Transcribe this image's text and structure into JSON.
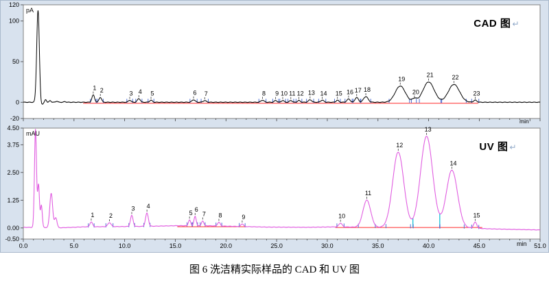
{
  "figure": {
    "caption": "图 6 洗洁精实际样品的 CAD 和 UV 图",
    "background_color": "#d8e2ee",
    "grid": false,
    "legend": "none"
  },
  "chart_data": [
    {
      "type": "line",
      "id": "cad",
      "title": "CAD 图",
      "linebreak_mark": "↵",
      "y_unit": "pA",
      "x_unit": "min",
      "xlim": [
        0,
        51
      ],
      "ylim": [
        -20,
        120
      ],
      "show_x_labels": false,
      "x_ticks": [
        {
          "v": 0,
          "label": "0.0"
        },
        {
          "v": 5,
          "label": "5.0"
        },
        {
          "v": 10,
          "label": "10.0"
        },
        {
          "v": 15,
          "label": "15.0"
        },
        {
          "v": 20,
          "label": "20.0"
        },
        {
          "v": 25,
          "label": "25.0"
        },
        {
          "v": 30,
          "label": "30.0"
        },
        {
          "v": 35,
          "label": "35.0"
        },
        {
          "v": 40,
          "label": "40.0"
        },
        {
          "v": 45,
          "label": "45.0"
        },
        {
          "v": 51,
          "label": "51.0"
        }
      ],
      "y_ticks": [
        {
          "v": 120,
          "label": "120"
        },
        {
          "v": 100,
          "label": "100"
        },
        {
          "v": 50,
          "label": "50"
        },
        {
          "v": 0,
          "label": "0"
        },
        {
          "v": -20,
          "label": "-20"
        }
      ],
      "line_color": "#000000",
      "baseline_red_color": "#ff2a2a",
      "integration_tick_color": "#4d6fd4",
      "drop_color": "#00bcd4",
      "noise_amp": 0.45,
      "baseline_anchors": [
        [
          0,
          0
        ],
        [
          1.5,
          0
        ],
        [
          1.75,
          -4
        ],
        [
          2.05,
          -1
        ],
        [
          2.5,
          0
        ],
        [
          51,
          0
        ]
      ],
      "unnumbered_peaks": [
        [
          1.45,
          113,
          0.13
        ],
        [
          2.2,
          4,
          0.09
        ],
        [
          2.65,
          2,
          0.09
        ],
        [
          3.3,
          1.3,
          0.1
        ],
        [
          4.1,
          0.8,
          0.1
        ]
      ],
      "numbered_peaks": [
        {
          "n": "1",
          "t": 6.9,
          "h": 9,
          "s": 0.13
        },
        {
          "n": "2",
          "t": 7.6,
          "h": 6,
          "s": 0.13
        },
        {
          "n": "3",
          "t": 10.5,
          "h": 2.5,
          "s": 0.13
        },
        {
          "n": "4",
          "t": 11.4,
          "h": 4.5,
          "s": 0.14
        },
        {
          "n": "5",
          "t": 12.6,
          "h": 2.5,
          "s": 0.13
        },
        {
          "n": "6",
          "t": 16.8,
          "h": 3,
          "s": 0.16
        },
        {
          "n": "7",
          "t": 17.9,
          "h": 2,
          "s": 0.16
        },
        {
          "n": "8",
          "t": 23.6,
          "h": 2.5,
          "s": 0.16
        },
        {
          "n": "9",
          "t": 24.9,
          "h": 2.2,
          "s": 0.13
        },
        {
          "n": "10",
          "t": 25.6,
          "h": 2.2,
          "s": 0.13
        },
        {
          "n": "11",
          "t": 26.4,
          "h": 2.2,
          "s": 0.13
        },
        {
          "n": "12",
          "t": 27.2,
          "h": 2.2,
          "s": 0.13
        },
        {
          "n": "13",
          "t": 28.3,
          "h": 3,
          "s": 0.16
        },
        {
          "n": "14",
          "t": 29.5,
          "h": 2.5,
          "s": 0.16
        },
        {
          "n": "15",
          "t": 31.0,
          "h": 2.5,
          "s": 0.13
        },
        {
          "n": "16",
          "t": 32.1,
          "h": 4,
          "s": 0.16
        },
        {
          "n": "17",
          "t": 32.9,
          "h": 6,
          "s": 0.16
        },
        {
          "n": "18",
          "t": 33.8,
          "h": 7,
          "s": 0.22
        },
        {
          "n": "19",
          "t": 37.2,
          "h": 20,
          "s": 0.5
        },
        {
          "n": "20",
          "t": 38.6,
          "h": 4,
          "s": 0.22
        },
        {
          "n": "21",
          "t": 40.0,
          "h": 25,
          "s": 0.55
        },
        {
          "n": "22",
          "t": 42.5,
          "h": 22,
          "s": 0.55
        },
        {
          "n": "23",
          "t": 44.6,
          "h": 2.5,
          "s": 0.16
        }
      ],
      "red_baselines": [
        {
          "t1": 5.9,
          "t2": 44.9,
          "v": -1.2
        }
      ],
      "drop_lines": []
    },
    {
      "type": "line",
      "id": "uv",
      "title": "UV 图",
      "linebreak_mark": "↵",
      "y_unit": "mAU",
      "x_unit": "min",
      "xlim": [
        0,
        51
      ],
      "ylim": [
        -0.5,
        4.5
      ],
      "show_x_labels": true,
      "x_ticks": [
        {
          "v": 0,
          "label": "0.0"
        },
        {
          "v": 5,
          "label": "5.0"
        },
        {
          "v": 10,
          "label": "10.0"
        },
        {
          "v": 15,
          "label": "15.0"
        },
        {
          "v": 20,
          "label": "20.0"
        },
        {
          "v": 25,
          "label": "25.0"
        },
        {
          "v": 30,
          "label": "30.0"
        },
        {
          "v": 35,
          "label": "35.0"
        },
        {
          "v": 40,
          "label": "40.0"
        },
        {
          "v": 45,
          "label": "45.0"
        },
        {
          "v": 51,
          "label": "51.0"
        }
      ],
      "y_ticks": [
        {
          "v": 4.5,
          "label": "4.50"
        },
        {
          "v": 3.75,
          "label": "3.75"
        },
        {
          "v": 2.5,
          "label": "2.50"
        },
        {
          "v": 1.25,
          "label": "1.25"
        },
        {
          "v": 0,
          "label": "0.00"
        },
        {
          "v": -0.5,
          "label": "-0.50"
        }
      ],
      "line_color": "#e05ce0",
      "baseline_red_color": "#ff2a2a",
      "integration_tick_color": "#4d6fd4",
      "drop_color": "#00bcd4",
      "noise_amp": 0.012,
      "baseline_anchors": [
        [
          0,
          0.03
        ],
        [
          3.8,
          0.01
        ],
        [
          6,
          0.05
        ],
        [
          12,
          0.07
        ],
        [
          15,
          0.1
        ],
        [
          18,
          0.1
        ],
        [
          21,
          0.07
        ],
        [
          24,
          0.04
        ],
        [
          28,
          0.03
        ],
        [
          31,
          0.05
        ],
        [
          36,
          0.02
        ],
        [
          44,
          0.0
        ],
        [
          46,
          -0.04
        ],
        [
          51,
          -0.09
        ]
      ],
      "unnumbered_peaks": [
        [
          1.2,
          4.42,
          0.1
        ],
        [
          1.5,
          1.9,
          0.09
        ],
        [
          1.78,
          1.0,
          0.09
        ],
        [
          2.75,
          1.55,
          0.14
        ],
        [
          3.2,
          0.45,
          0.12
        ]
      ],
      "numbered_peaks": [
        {
          "n": "1",
          "t": 6.7,
          "h": 0.22,
          "s": 0.13
        },
        {
          "n": "2",
          "t": 8.5,
          "h": 0.18,
          "s": 0.16
        },
        {
          "n": "3",
          "t": 10.7,
          "h": 0.5,
          "s": 0.13
        },
        {
          "n": "4",
          "t": 12.2,
          "h": 0.6,
          "s": 0.14
        },
        {
          "n": "5",
          "t": 16.4,
          "h": 0.26,
          "s": 0.11
        },
        {
          "n": "6",
          "t": 16.95,
          "h": 0.42,
          "s": 0.11
        },
        {
          "n": "7",
          "t": 17.7,
          "h": 0.22,
          "s": 0.11
        },
        {
          "n": "8",
          "t": 19.3,
          "h": 0.17,
          "s": 0.13
        },
        {
          "n": "9",
          "t": 21.6,
          "h": 0.12,
          "s": 0.13
        },
        {
          "n": "10",
          "t": 31.3,
          "h": 0.17,
          "s": 0.16
        },
        {
          "n": "11",
          "t": 33.9,
          "h": 1.22,
          "s": 0.38
        },
        {
          "n": "12",
          "t": 37.0,
          "h": 3.4,
          "s": 0.55
        },
        {
          "n": "13",
          "t": 39.8,
          "h": 4.12,
          "s": 0.6
        },
        {
          "n": "14",
          "t": 42.3,
          "h": 2.6,
          "s": 0.55
        },
        {
          "n": "15",
          "t": 44.6,
          "h": 0.27,
          "s": 0.16
        }
      ],
      "red_baselines": [
        {
          "t1": 15.2,
          "t2": 22.2,
          "v": 0.055
        },
        {
          "t1": 30.8,
          "t2": 45.3,
          "v": 0.02
        }
      ],
      "drop_lines": [
        {
          "t": 38.45
        },
        {
          "t": 41.1
        }
      ]
    }
  ]
}
